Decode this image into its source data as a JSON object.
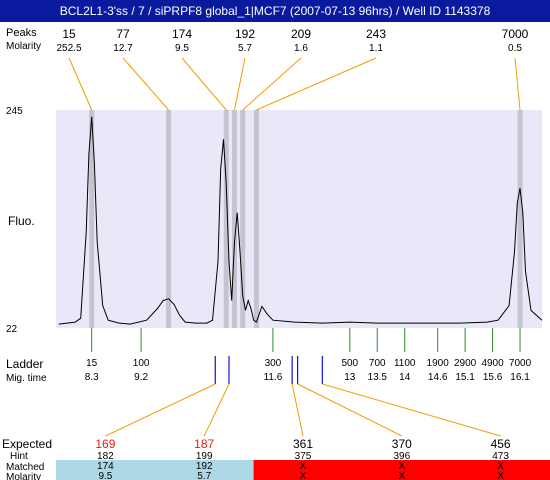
{
  "title": "BCL2L1-3'ss / 7 / siPRPF8 global_1|MCF7 (2007-07-13 96hrs) / Well ID 1143378",
  "row_labels": {
    "peaks": "Peaks",
    "molarity": "Molarity",
    "fluo": "Fluo.",
    "ladder": "Ladder",
    "mig_time": "Mig. time",
    "expected": "Expected",
    "hint": "Hint",
    "matched": "Matched",
    "matched_molarity": "Molarity"
  },
  "colors": {
    "title_bg": "#0a1a9e",
    "plot_bg": "#e8e8f8",
    "peak_band": "#c4c4d0",
    "callout": "#f0a000",
    "ladder_tick": "#2e8b2e",
    "marker": "#1010d0",
    "expected_red": "#e02020",
    "matched_blue": "#add8e6",
    "unmatched_red": "#ff0000"
  },
  "chart_data": {
    "type": "line",
    "y_axis_ticks": [
      "245",
      "22"
    ],
    "ylim": [
      22,
      245
    ],
    "grid": false,
    "peaks": [
      {
        "size": "15",
        "molarity": "252.5",
        "mig_time": 8.3
      },
      {
        "size": "77",
        "molarity": "12.7",
        "mig_time": 9.7
      },
      {
        "size": "174",
        "molarity": "9.5",
        "mig_time": 10.75
      },
      {
        "size": "192",
        "molarity": "5.7",
        "mig_time": 10.9
      },
      {
        "size": "209",
        "molarity": "1.6",
        "mig_time": 11.05
      },
      {
        "size": "243",
        "molarity": "1.1",
        "mig_time": 11.3
      },
      {
        "size": "7000",
        "molarity": "0.5",
        "mig_time": 16.1
      }
    ],
    "ladder": [
      {
        "size": "15",
        "mig_time": "8.3"
      },
      {
        "size": "100",
        "mig_time": "9.2"
      },
      {
        "size": "300",
        "mig_time": "11.6"
      },
      {
        "size": "500",
        "mig_time": "13"
      },
      {
        "size": "700",
        "mig_time": "13.5"
      },
      {
        "size": "1100",
        "mig_time": "14"
      },
      {
        "size": "1900",
        "mig_time": "14.6"
      },
      {
        "size": "2900",
        "mig_time": "15.1"
      },
      {
        "size": "4900",
        "mig_time": "15.6"
      },
      {
        "size": "7000",
        "mig_time": "16.1"
      }
    ],
    "trace": [
      [
        7.7,
        26
      ],
      [
        8.0,
        28
      ],
      [
        8.1,
        32
      ],
      [
        8.2,
        120
      ],
      [
        8.25,
        200
      ],
      [
        8.3,
        238
      ],
      [
        8.35,
        190
      ],
      [
        8.4,
        110
      ],
      [
        8.5,
        45
      ],
      [
        8.6,
        30
      ],
      [
        8.8,
        27
      ],
      [
        9.0,
        26
      ],
      [
        9.3,
        30
      ],
      [
        9.5,
        42
      ],
      [
        9.6,
        50
      ],
      [
        9.7,
        52
      ],
      [
        9.8,
        46
      ],
      [
        9.9,
        35
      ],
      [
        10.0,
        28
      ],
      [
        10.2,
        27
      ],
      [
        10.4,
        27
      ],
      [
        10.5,
        30
      ],
      [
        10.6,
        90
      ],
      [
        10.65,
        185
      ],
      [
        10.7,
        215
      ],
      [
        10.75,
        170
      ],
      [
        10.8,
        90
      ],
      [
        10.85,
        50
      ],
      [
        10.9,
        110
      ],
      [
        10.95,
        140
      ],
      [
        11.0,
        100
      ],
      [
        11.05,
        55
      ],
      [
        11.1,
        40
      ],
      [
        11.15,
        50
      ],
      [
        11.2,
        42
      ],
      [
        11.25,
        30
      ],
      [
        11.3,
        28
      ],
      [
        11.4,
        44
      ],
      [
        11.5,
        36
      ],
      [
        11.6,
        30
      ],
      [
        12.0,
        28
      ],
      [
        12.5,
        27
      ],
      [
        13.0,
        28
      ],
      [
        13.5,
        27
      ],
      [
        14.0,
        27
      ],
      [
        14.5,
        27
      ],
      [
        15.0,
        27
      ],
      [
        15.5,
        28
      ],
      [
        15.7,
        30
      ],
      [
        15.9,
        45
      ],
      [
        16.0,
        100
      ],
      [
        16.05,
        150
      ],
      [
        16.1,
        165
      ],
      [
        16.15,
        140
      ],
      [
        16.2,
        80
      ],
      [
        16.3,
        40
      ],
      [
        16.5,
        30
      ]
    ],
    "markers": [
      {
        "from_time": 10.55,
        "to_time": 10.5,
        "label": "169",
        "hint": "182",
        "matched": "174",
        "molarity": "9.5",
        "matched_ok": true
      },
      {
        "from_time": 10.8,
        "to_time": 10.95,
        "label": "187",
        "hint": "199",
        "matched": "192",
        "molarity": "5.7",
        "matched_ok": true
      },
      {
        "from_time": 11.95,
        "to_time": 11.75,
        "label": "361",
        "hint": "375",
        "matched": "X",
        "molarity": "X",
        "matched_ok": false
      },
      {
        "from_time": 12.05,
        "to_time": 13.4,
        "label": "370",
        "hint": "396",
        "matched": "X",
        "molarity": "X",
        "matched_ok": false
      },
      {
        "from_time": 12.5,
        "to_time": 14.9,
        "label": "456",
        "hint": "473",
        "matched": "X",
        "molarity": "X",
        "matched_ok": false
      }
    ]
  }
}
